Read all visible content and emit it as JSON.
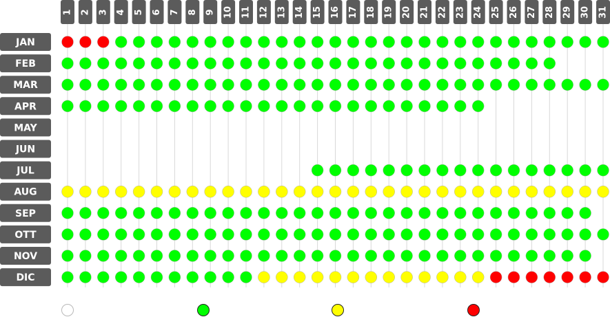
{
  "months": [
    "JAN",
    "FEB",
    "MAR",
    "APR",
    "MAY",
    "JUN",
    "JUL",
    "AUG",
    "SEP",
    "OTT",
    "NOV",
    "DIC"
  ],
  "days": [
    "1",
    "2",
    "3",
    "4",
    "5",
    "6",
    "7",
    "8",
    "9",
    "10",
    "11",
    "12",
    "13",
    "14",
    "15",
    "16",
    "17",
    "18",
    "19",
    "20",
    "21",
    "22",
    "23",
    "24",
    "25",
    "26",
    "27",
    "28",
    "29",
    "30",
    "31"
  ],
  "colors": {
    "white": "#ffffff",
    "green": "#00ff00",
    "yellow": "#ffff00",
    "red": "#ff0000",
    "label_bg": "#5b5b5b",
    "grid": "#d8d8d8",
    "dot_stroke": "#b0b0b0"
  },
  "status_rows": [
    "RRRGGGGGGGGGGGGGGGGGGGGGGGGGGGG",
    "GGGGGGGGGGGGGGGGGGGGGGGGGGGG",
    "GGGGGGGGGGGGGGGGGGGGGGGGGGGGGGG",
    "GGGGGGGGGGGGGGGGGGGGGGGG",
    "",
    "",
    "..............GGGGGGGGGGGGGGGGG",
    "YYYYYYYYYYYYYYYYYYYYYYYYYYYYYYY",
    "GGGGGGGGGGGGGGGGGGGGGGGGGGGGGG",
    "GGGGGGGGGGGGGGGGGGGGGGGGGGGGGGG",
    "GGGGGGGGGGGGGGGGGGGGGGGGGGGGGG",
    "GGGGGGGGGGGYYYYYYYYYYYYYRRRRRRR"
  ],
  "legend": [
    "white",
    "green",
    "yellow",
    "red"
  ]
}
